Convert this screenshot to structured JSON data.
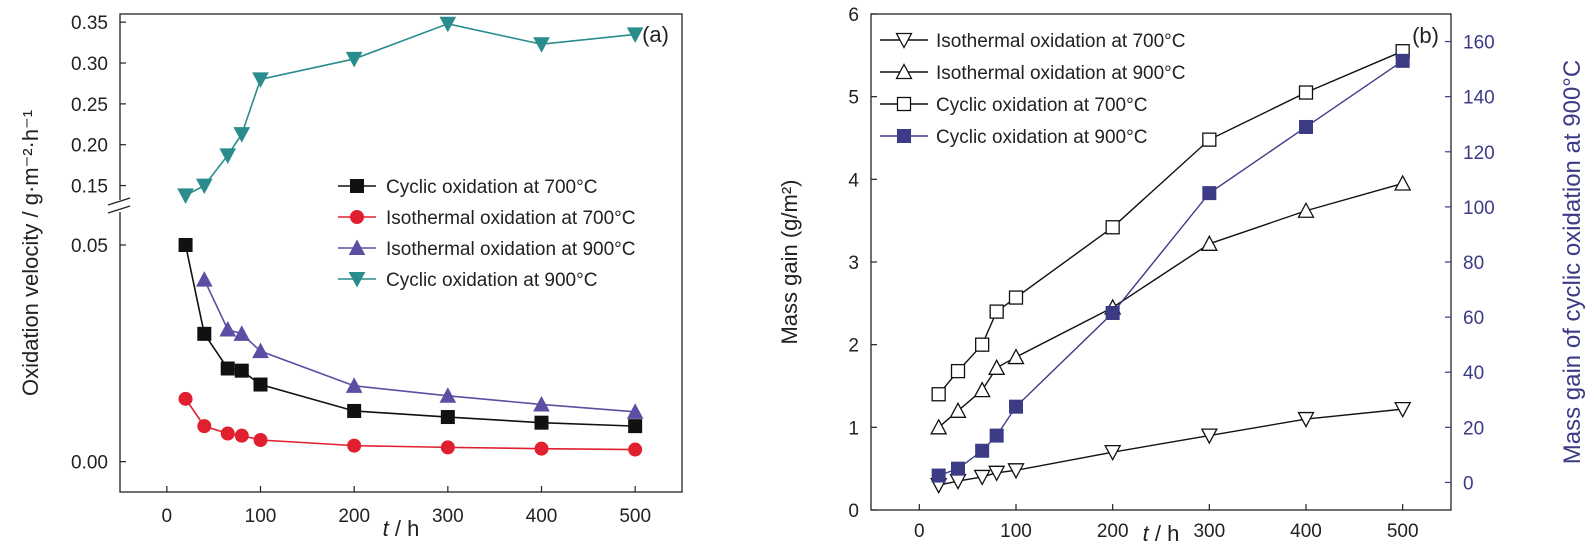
{
  "chart_data": [
    {
      "type": "line",
      "panel_label": "(a)",
      "xlabel": "t / h",
      "ylabel": "Oxidation velocity / g·m⁻²·h⁻¹",
      "xlim": [
        -50,
        550
      ],
      "x_ticks": [
        0,
        100,
        200,
        300,
        400,
        500
      ],
      "y_upper_range": [
        0.125,
        0.36
      ],
      "y_upper_ticks": [
        "0.15",
        "0.20",
        "0.25",
        "0.30",
        "0.35"
      ],
      "y_lower_range": [
        -0.007,
        0.059
      ],
      "y_lower_ticks": [
        "0.00",
        "0.05"
      ],
      "axis_break": true,
      "legend_position": "center-right",
      "grid": false,
      "series": [
        {
          "name": "Cyclic oxidation at 700°C",
          "color": "#111111",
          "marker": "square",
          "segment": "lower",
          "x": [
            20,
            40,
            65,
            80,
            100,
            200,
            300,
            400,
            500
          ],
          "y": [
            0.05,
            0.0295,
            0.0215,
            0.021,
            0.0178,
            0.0117,
            0.0103,
            0.009,
            0.0082
          ]
        },
        {
          "name": "Isothermal oxidation at 700°C",
          "color": "#e0202e",
          "marker": "circle",
          "segment": "lower",
          "x": [
            20,
            40,
            65,
            80,
            100,
            200,
            300,
            400,
            500
          ],
          "y": [
            0.0145,
            0.0082,
            0.0065,
            0.006,
            0.005,
            0.0037,
            0.0033,
            0.003,
            0.0028
          ]
        },
        {
          "name": "Isothermal oxidation at 900°C",
          "color": "#5b4fa3",
          "marker": "triangle-up",
          "segment": "lower",
          "x": [
            40,
            65,
            80,
            100,
            200,
            300,
            400,
            500
          ],
          "y": [
            0.042,
            0.0305,
            0.0295,
            0.0255,
            0.0175,
            0.0152,
            0.0132,
            0.0115
          ]
        },
        {
          "name": "Cyclic oxidation at 900°C",
          "color": "#2a8c8c",
          "marker": "triangle-down",
          "segment": "upper",
          "x": [
            20,
            40,
            65,
            80,
            100,
            200,
            300,
            400,
            500
          ],
          "y": [
            0.138,
            0.15,
            0.187,
            0.213,
            0.28,
            0.305,
            0.348,
            0.323,
            0.335
          ]
        }
      ]
    },
    {
      "type": "line",
      "panel_label": "(b)",
      "xlabel": "t / h",
      "ylabel": "Mass gain (g/m²)",
      "y2label": "Mass gain of cyclic oxidation at 900°C",
      "y2_color": "#3b3b86",
      "xlim": [
        -50,
        550
      ],
      "x_ticks": [
        0,
        100,
        200,
        300,
        400,
        500
      ],
      "ylim": [
        0,
        6
      ],
      "y_ticks": [
        0,
        1,
        2,
        3,
        4,
        5,
        6
      ],
      "y2lim": [
        -10,
        170
      ],
      "y2_ticks": [
        0,
        20,
        40,
        60,
        80,
        100,
        120,
        140,
        160
      ],
      "legend_position": "top-left",
      "grid": false,
      "series": [
        {
          "name": "Isothermal oxidation at 700°C",
          "color": "#111111",
          "marker": "open-triangle-down",
          "axis": "left",
          "x": [
            20,
            40,
            65,
            80,
            100,
            200,
            300,
            400,
            500
          ],
          "y": [
            0.3,
            0.35,
            0.4,
            0.45,
            0.48,
            0.7,
            0.9,
            1.1,
            1.22
          ]
        },
        {
          "name": "Isothermal oxidation at 900°C",
          "color": "#111111",
          "marker": "open-triangle-up",
          "axis": "left",
          "x": [
            20,
            40,
            65,
            80,
            100,
            200,
            300,
            400,
            500
          ],
          "y": [
            1.0,
            1.2,
            1.45,
            1.72,
            1.85,
            2.45,
            3.22,
            3.62,
            3.95
          ]
        },
        {
          "name": "Cyclic oxidation at 700°C",
          "color": "#111111",
          "marker": "open-square",
          "axis": "left",
          "x": [
            20,
            40,
            65,
            80,
            100,
            200,
            300,
            400,
            500
          ],
          "y": [
            1.4,
            1.68,
            2.0,
            2.4,
            2.57,
            3.42,
            4.48,
            5.05,
            5.55
          ]
        },
        {
          "name": "Cyclic oxidation at 900°C",
          "color": "#3b3b86",
          "marker": "square",
          "axis": "right",
          "x": [
            20,
            40,
            65,
            80,
            100,
            200,
            300,
            400,
            500
          ],
          "y": [
            2.5,
            5,
            11.5,
            17,
            27.5,
            61.5,
            105,
            129,
            153
          ]
        }
      ]
    }
  ]
}
